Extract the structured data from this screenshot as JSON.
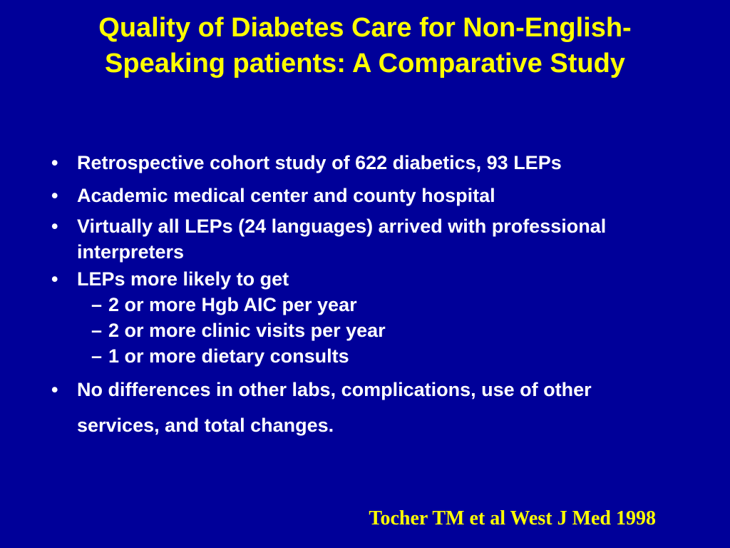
{
  "slide": {
    "title": "Quality of Diabetes Care for Non-English-Speaking patients: A Comparative Study",
    "bullet_glyph": "•",
    "dash_glyph": "–",
    "bullets": [
      {
        "text": "Retrospective cohort study of 622 diabetics, 93 LEPs"
      },
      {
        "text": "Academic medical center and county hospital"
      },
      {
        "text": "Virtually all LEPs (24 languages) arrived with professional interpreters"
      },
      {
        "text": "LEPs more likely to get",
        "sub": [
          "2 or more Hgb AIC per year",
          "2 or more clinic visits per year",
          "1 or more dietary consults"
        ]
      },
      {
        "text": "No differences in other labs, complications, use of other services, and total changes."
      }
    ],
    "citation": "Tocher TM et al West J Med 1998",
    "colors": {
      "background": "#000099",
      "title": "#ffff00",
      "body_text": "#ffffff",
      "citation": "#ffff00"
    }
  }
}
